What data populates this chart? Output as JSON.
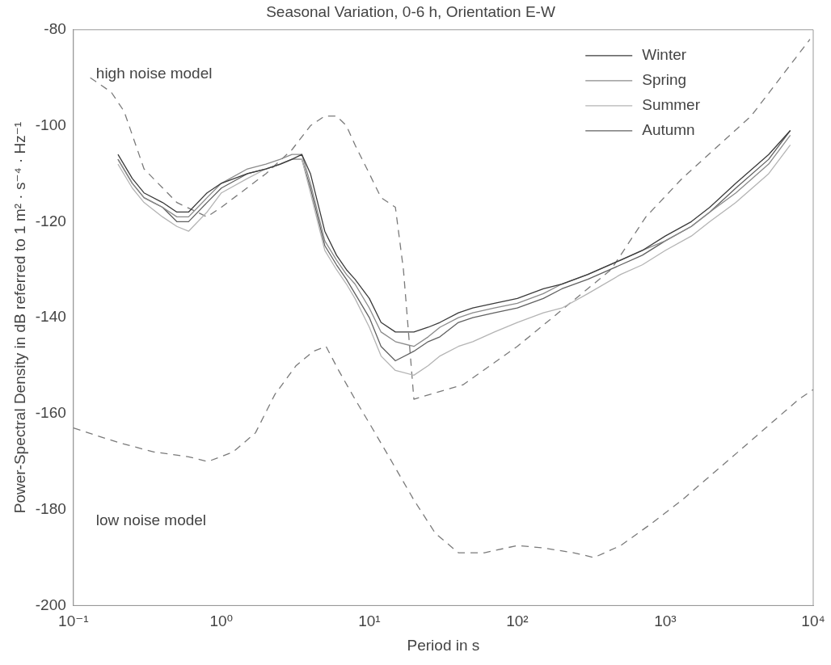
{
  "chart_data": {
    "type": "line",
    "title": "Seasonal Variation, 0-6 h, Orientation E-W",
    "xlabel": "Period in s",
    "ylabel": "Power-Spectral Density in dB referred to 1 m² · s⁻⁴ · Hz⁻¹",
    "log": "x",
    "grid": false,
    "legend": "top right",
    "marker": "none",
    "xlim": [
      0.1,
      10000
    ],
    "xticks": [
      {
        "value": 0.1,
        "label": "10⁻¹"
      },
      {
        "value": 1,
        "label": "10⁰"
      },
      {
        "value": 10,
        "label": "10¹"
      },
      {
        "value": 100,
        "label": "10²"
      },
      {
        "value": 1000,
        "label": "10³"
      },
      {
        "value": 10000,
        "label": "10⁴"
      }
    ],
    "ylim": [
      -200,
      -80
    ],
    "yticks": [
      -200,
      -180,
      -160,
      -140,
      -120,
      -100,
      -80
    ],
    "x": [
      0.2,
      0.25,
      0.3,
      0.4,
      0.5,
      0.6,
      0.8,
      1,
      1.5,
      2,
      2.5,
      3,
      3.5,
      4,
      5,
      6,
      7,
      8,
      10,
      12,
      15,
      20,
      25,
      30,
      40,
      50,
      70,
      100,
      150,
      200,
      300,
      500,
      700,
      1000,
      1500,
      2000,
      3000,
      5000,
      7000
    ],
    "series": [
      {
        "name": "Winter",
        "color": "#3a3a3a",
        "line_style": "solid",
        "values": [
          -106,
          -111,
          -114,
          -116,
          -118,
          -118,
          -114,
          -112,
          -110,
          -109,
          -108,
          -107,
          -106,
          -110,
          -122,
          -127,
          -130,
          -132,
          -136,
          -141,
          -143,
          -143,
          -142,
          -141,
          -139,
          -138,
          -137,
          -136,
          -134,
          -133,
          -131,
          -128,
          -126,
          -123,
          -120,
          -117,
          -112,
          -106,
          -101
        ]
      },
      {
        "name": "Spring",
        "color": "#8a8a8a",
        "line_style": "solid",
        "values": [
          -107,
          -112,
          -115,
          -117,
          -119,
          -119,
          -115,
          -112,
          -109,
          -108,
          -107,
          -106,
          -106,
          -112,
          -124,
          -128,
          -131,
          -133,
          -138,
          -143,
          -145,
          -146,
          -144,
          -142,
          -140,
          -139,
          -138,
          -137,
          -135,
          -133,
          -131,
          -128,
          -126,
          -124,
          -121,
          -118,
          -114,
          -108,
          -102
        ]
      },
      {
        "name": "Summer",
        "color": "#b4b4b4",
        "line_style": "solid",
        "values": [
          -108,
          -113,
          -116,
          -119,
          -121,
          -122,
          -118,
          -114,
          -111,
          -109,
          -108,
          -107,
          -107,
          -114,
          -126,
          -130,
          -133,
          -136,
          -142,
          -148,
          -151,
          -152,
          -150,
          -148,
          -146,
          -145,
          -143,
          -141,
          -139,
          -138,
          -135,
          -131,
          -129,
          -126,
          -123,
          -120,
          -116,
          -110,
          -104
        ]
      },
      {
        "name": "Autumn",
        "color": "#606060",
        "line_style": "solid",
        "values": [
          -107,
          -112,
          -115,
          -117,
          -120,
          -120,
          -116,
          -113,
          -110,
          -109,
          -108,
          -107,
          -107,
          -113,
          -125,
          -129,
          -132,
          -135,
          -140,
          -146,
          -149,
          -147,
          -145,
          -144,
          -141,
          -140,
          -139,
          -138,
          -136,
          -134,
          -132,
          -129,
          -127,
          -124,
          -121,
          -118,
          -113,
          -107,
          -101
        ]
      },
      {
        "color": "#7a7a7a",
        "line_style": "dashed",
        "x": [
          0.13,
          0.18,
          0.22,
          0.3,
          0.5,
          0.8,
          1,
          2,
          3,
          4,
          5,
          6,
          7,
          8,
          10,
          12,
          15,
          17,
          20,
          43,
          100,
          430,
          740,
          1300,
          3800,
          9500
        ],
        "values": [
          -90,
          -93,
          -97,
          -109,
          -116,
          -119,
          -117,
          -110,
          -105,
          -100,
          -98,
          -98,
          -100,
          -104,
          -110,
          -115,
          -117,
          -130,
          -157,
          -154,
          -146,
          -130,
          -119,
          -111,
          -98,
          -82
        ]
      },
      {
        "color": "#7a7a7a",
        "line_style": "dashed",
        "x": [
          0.1,
          0.2,
          0.35,
          0.6,
          0.81,
          1.2,
          1.7,
          2.3,
          3.2,
          4.2,
          5.1,
          6.2,
          8,
          10,
          13,
          20,
          28,
          40,
          60,
          100,
          150,
          240,
          330,
          500,
          800,
          1300,
          3100,
          8000,
          10000
        ],
        "values": [
          -163,
          -166,
          -168,
          -169,
          -170,
          -168,
          -164,
          -156,
          -150,
          -147,
          -146,
          -151,
          -157,
          -162,
          -168,
          -178,
          -185,
          -189,
          -189,
          -187.5,
          -188,
          -189,
          -190,
          -187.5,
          -183,
          -178,
          -168,
          -157,
          -155
        ]
      }
    ],
    "annotations": [
      "high noise model",
      "low noise model"
    ]
  }
}
